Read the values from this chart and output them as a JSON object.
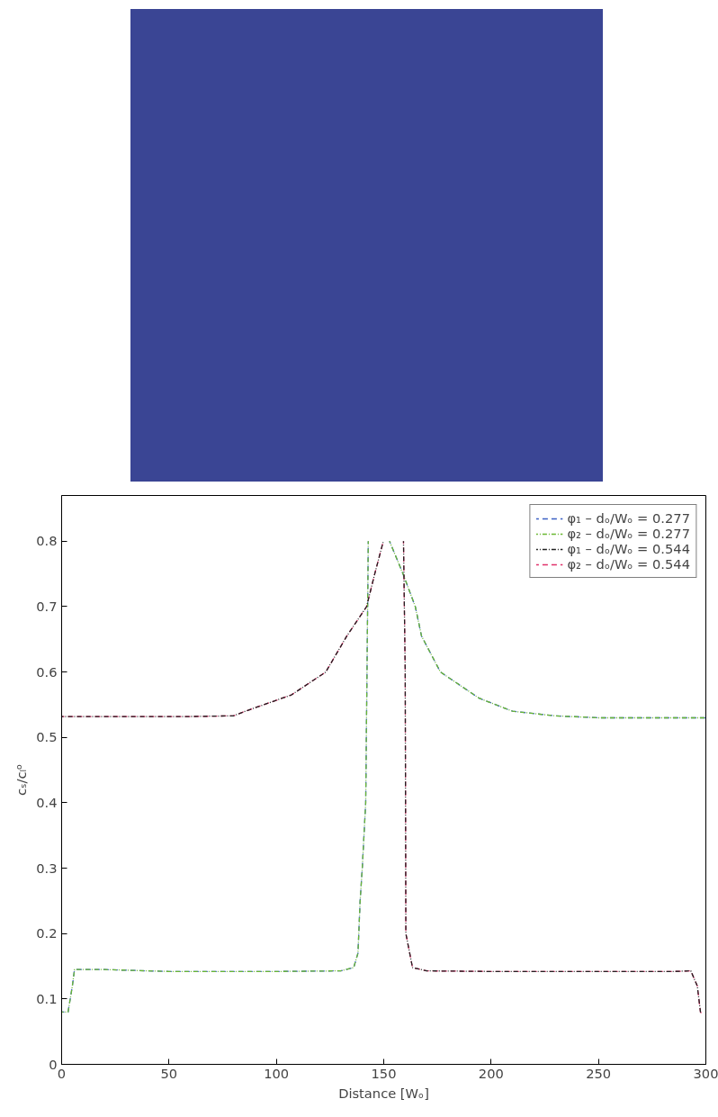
{
  "chart_data": {
    "type": "line",
    "xlabel": "Distance [Wₒ]",
    "ylabel": "cₛ/cₗᵒ",
    "xlim": [
      0,
      300
    ],
    "ylim": [
      0,
      0.87
    ],
    "xticks": [
      0,
      50,
      100,
      150,
      200,
      250,
      300
    ],
    "yticks": [
      0,
      {
        "value": 0.1,
        "label": "0.1"
      },
      {
        "value": 0.2,
        "label": "0.2"
      },
      {
        "value": 0.3,
        "label": "0.3"
      },
      {
        "value": 0.4,
        "label": "0.4"
      },
      {
        "value": 0.5,
        "label": "0.5"
      },
      {
        "value": 0.6,
        "label": "0.6"
      },
      {
        "value": 0.7,
        "label": "0.7"
      },
      {
        "value": 0.8,
        "label": "0.8"
      }
    ],
    "grid": false,
    "legend": "top right",
    "marker": "none",
    "series": [
      {
        "name": "φ₁ – dₒ/Wₒ = 0.277",
        "color": "#3b5fc4",
        "line_style": "dashed",
        "x": [
          0,
          3,
          5,
          6,
          20,
          50,
          100,
          130,
          136,
          138,
          139,
          140,
          141.6,
          141.9,
          142.8,
          146,
          152.7,
          159,
          164.7,
          167.6,
          176.4,
          194.4,
          210,
          230,
          250,
          300
        ],
        "values": [
          0.08,
          0.08,
          0.12,
          0.145,
          0.145,
          0.142,
          0.142,
          0.143,
          0.148,
          0.17,
          0.25,
          0.3,
          0.4,
          0.5,
          0.8,
          null,
          0.8,
          0.75,
          0.7,
          0.655,
          0.6,
          0.56,
          0.54,
          0.533,
          0.53,
          0.53
        ]
      },
      {
        "name": "φ₂ – dₒ/Wₒ = 0.277",
        "color": "#6ab832",
        "line_style": "dashdot",
        "x": [
          0,
          3,
          5,
          6,
          20,
          50,
          100,
          130,
          136,
          138,
          139,
          140,
          141.6,
          141.9,
          142.8,
          146,
          152.7,
          159,
          164.7,
          167.6,
          176.4,
          194.4,
          210,
          230,
          250,
          300
        ],
        "values": [
          0.08,
          0.08,
          0.12,
          0.145,
          0.145,
          0.142,
          0.142,
          0.143,
          0.148,
          0.17,
          0.25,
          0.3,
          0.4,
          0.5,
          0.8,
          null,
          0.8,
          0.75,
          0.7,
          0.655,
          0.6,
          0.56,
          0.54,
          0.533,
          0.53,
          0.53
        ]
      },
      {
        "name": "φ₁ – dₒ/Wₒ = 0.544",
        "color": "#222222",
        "line_style": "dashdot",
        "x": [
          0,
          60,
          80,
          85.5,
          107,
          123,
          132.8,
          142,
          145.8,
          149.8,
          156,
          159.2,
          160,
          160.3,
          163.4,
          170,
          200,
          285,
          293,
          296,
          297.5,
          298
        ],
        "values": [
          0.532,
          0.532,
          0.533,
          0.54,
          0.565,
          0.6,
          0.655,
          0.7,
          0.75,
          0.8,
          null,
          0.8,
          0.6,
          0.2,
          0.148,
          0.143,
          0.142,
          0.142,
          0.143,
          0.12,
          0.08,
          0.078
        ]
      },
      {
        "name": "φ₂ – dₒ/Wₒ = 0.544",
        "color": "#e0306a",
        "line_style": "dashed",
        "x": [
          0,
          60,
          80,
          85.5,
          107,
          123,
          132.8,
          142,
          145.8,
          149.8,
          156,
          159.2,
          160,
          160.3,
          163.4,
          170,
          200,
          285,
          293,
          296,
          297.5,
          298
        ],
        "values": [
          0.532,
          0.532,
          0.533,
          0.54,
          0.565,
          0.6,
          0.655,
          0.7,
          0.75,
          0.8,
          null,
          0.8,
          0.6,
          0.2,
          0.148,
          0.143,
          0.142,
          0.142,
          0.143,
          0.12,
          0.08,
          0.078
        ]
      }
    ]
  }
}
